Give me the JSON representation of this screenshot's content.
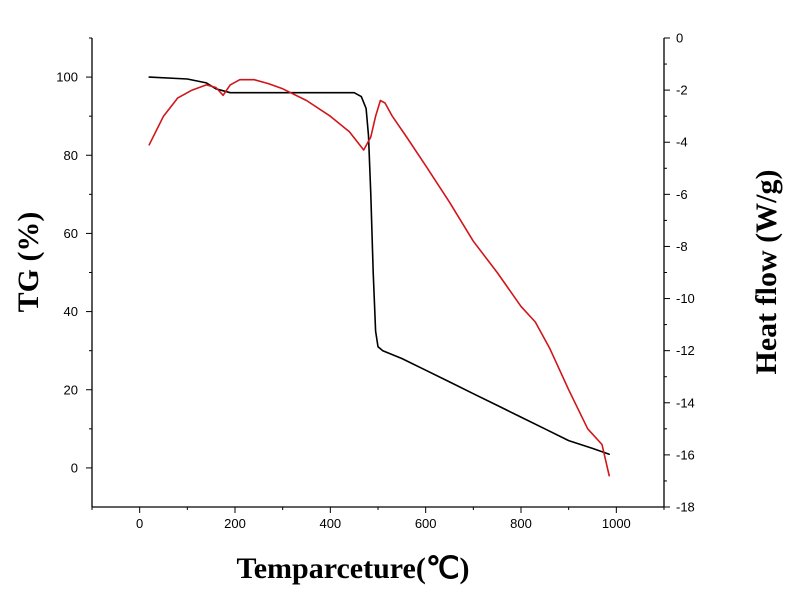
{
  "chart_data": {
    "type": "line",
    "xlabel": "Temparceture(℃)",
    "ylabel_left": "TG (%)",
    "ylabel_right": "Heat flow (W/g)",
    "xlim": [
      -100,
      1100
    ],
    "ylim_left": [
      -10,
      110
    ],
    "ylim_right": [
      -18,
      0
    ],
    "x_ticks": [
      0,
      200,
      400,
      600,
      800,
      1000
    ],
    "y_left_ticks": [
      0,
      20,
      40,
      60,
      80,
      100
    ],
    "y_right_ticks": [
      0,
      -2,
      -4,
      -6,
      -8,
      -10,
      -12,
      -14,
      -16,
      -18
    ],
    "grid": false,
    "series": [
      {
        "axis": "left",
        "color": "#000000",
        "x": [
          20,
          100,
          140,
          160,
          190,
          250,
          300,
          350,
          400,
          450,
          465,
          475,
          480,
          485,
          490,
          495,
          500,
          510,
          550,
          600,
          650,
          700,
          750,
          800,
          850,
          900,
          950,
          985
        ],
        "y": [
          100,
          99.5,
          98.5,
          97,
          96,
          96,
          96,
          96,
          96,
          96,
          95,
          92,
          85,
          70,
          50,
          35,
          31,
          30,
          28,
          25,
          22,
          19,
          16,
          13,
          10,
          7,
          5,
          3.5
        ]
      },
      {
        "axis": "right",
        "color": "#d0161a",
        "x": [
          20,
          50,
          80,
          110,
          140,
          160,
          175,
          190,
          210,
          240,
          270,
          300,
          350,
          400,
          440,
          470,
          485,
          495,
          505,
          515,
          530,
          560,
          600,
          650,
          700,
          750,
          800,
          830,
          860,
          900,
          940,
          970,
          985
        ],
        "y": [
          -4.1,
          -3.0,
          -2.3,
          -2.0,
          -1.8,
          -1.9,
          -2.2,
          -1.8,
          -1.6,
          -1.6,
          -1.75,
          -1.95,
          -2.4,
          -3.0,
          -3.6,
          -4.3,
          -3.8,
          -3.0,
          -2.4,
          -2.5,
          -3.0,
          -3.8,
          -4.9,
          -6.3,
          -7.8,
          -9.0,
          -10.3,
          -10.9,
          -11.9,
          -13.5,
          -15.0,
          -15.6,
          -16.8
        ]
      }
    ]
  }
}
